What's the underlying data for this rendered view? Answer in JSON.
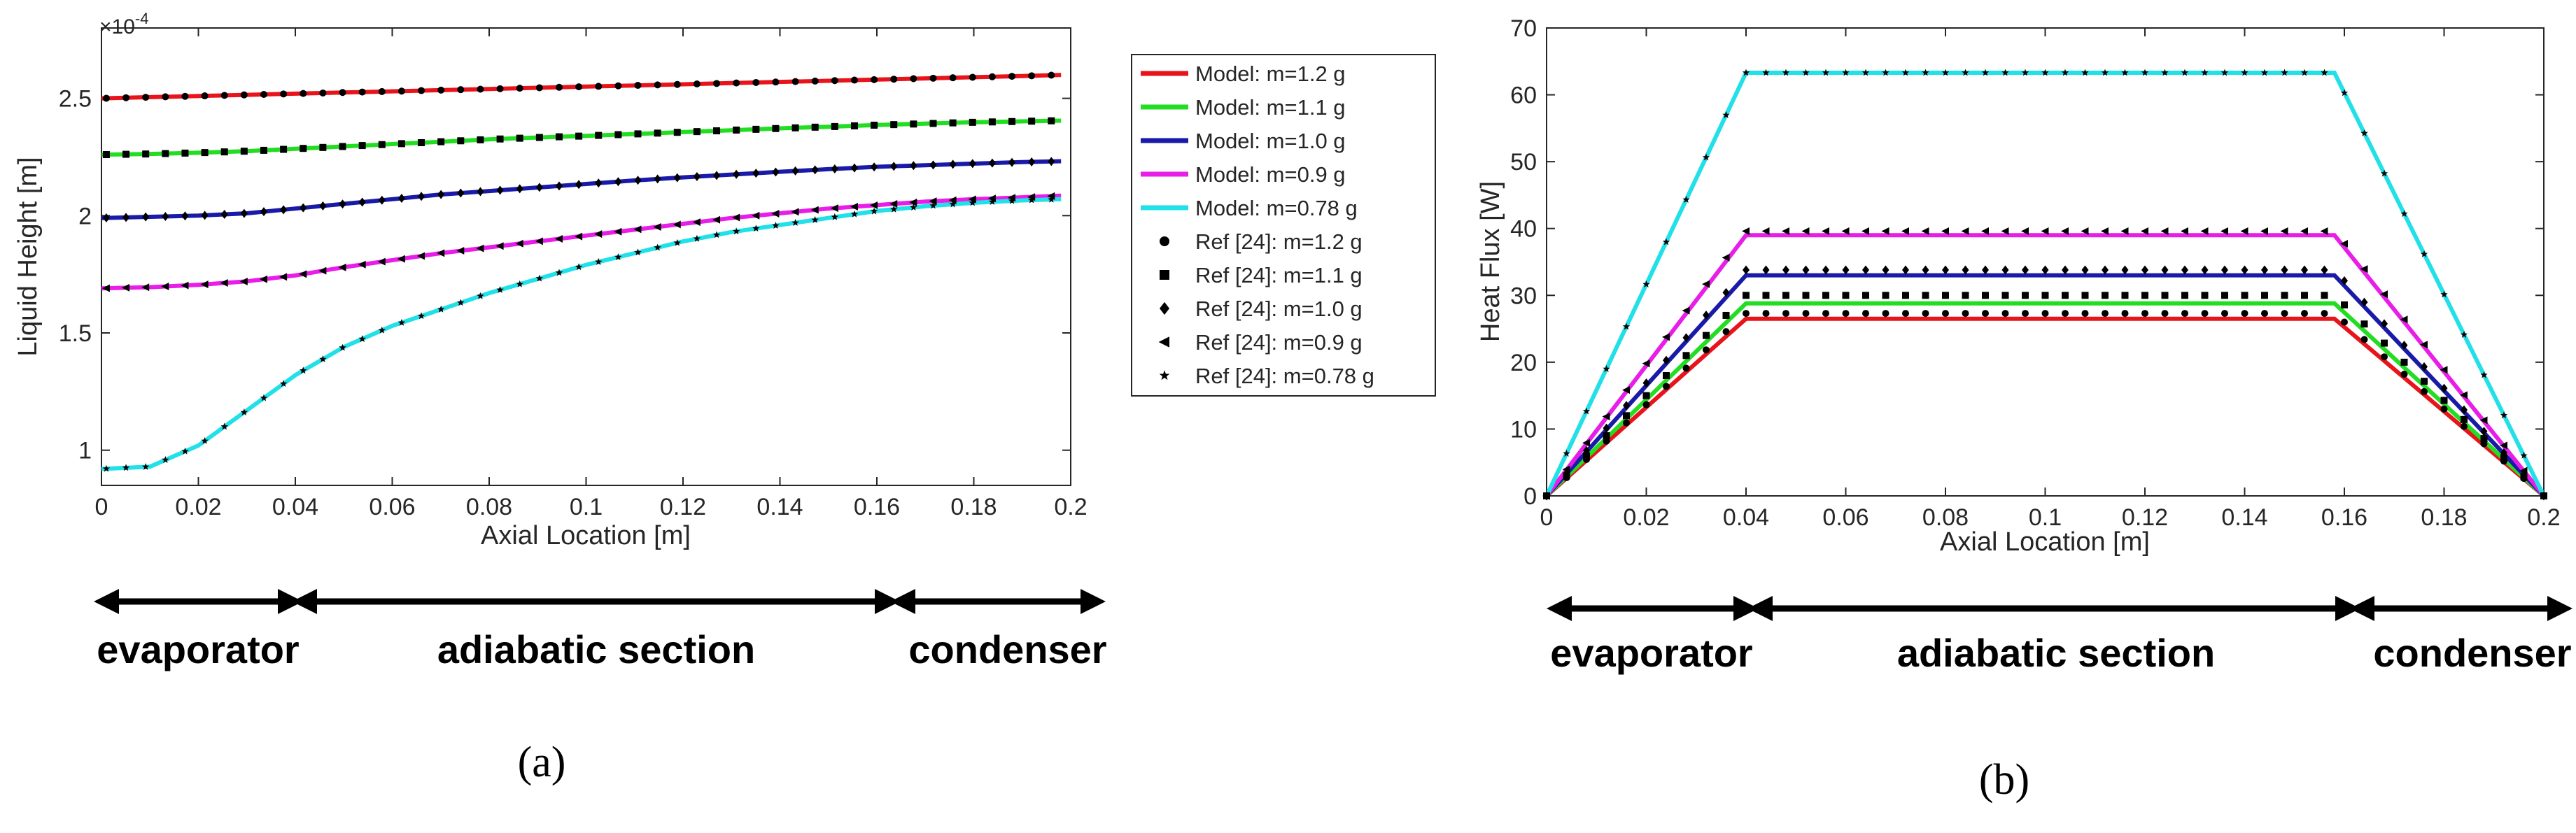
{
  "chart_data": [
    {
      "type": "line",
      "panel_label": "a",
      "xlabel": "Axial Location [m]",
      "ylabel": "Liquid Height [m]",
      "y_multiplier": "×10",
      "y_exponent": "-4",
      "xlim": [
        0,
        0.2
      ],
      "ylim": [
        0.85,
        2.8
      ],
      "xticks": [
        0,
        0.02,
        0.04,
        0.06,
        0.08,
        0.1,
        0.12,
        0.14,
        0.16,
        0.18,
        0.2
      ],
      "xtick_labels": [
        "0",
        "0.02",
        "0.04",
        "0.06",
        "0.08",
        "0.1",
        "0.12",
        "0.14",
        "0.16",
        "0.18",
        "0.2"
      ],
      "yticks": [
        1,
        1.5,
        2,
        2.5
      ],
      "ytick_labels": [
        "1",
        "1.5",
        "2",
        "2.5"
      ],
      "x": [
        0,
        0.01,
        0.02,
        0.03,
        0.04,
        0.05,
        0.06,
        0.07,
        0.08,
        0.09,
        0.1,
        0.11,
        0.12,
        0.13,
        0.14,
        0.15,
        0.16,
        0.17,
        0.18,
        0.19,
        0.198
      ],
      "marker_x_end": 0.196,
      "series": [
        {
          "name": "Model: m=1.2 g",
          "color": "#e8141c",
          "values": [
            2.5,
            2.505,
            2.51,
            2.515,
            2.52,
            2.525,
            2.53,
            2.535,
            2.54,
            2.545,
            2.55,
            2.555,
            2.56,
            2.565,
            2.57,
            2.575,
            2.58,
            2.585,
            2.59,
            2.595,
            2.6
          ]
        },
        {
          "name": "Model: m=1.1 g",
          "color": "#22dd22",
          "values": [
            2.26,
            2.263,
            2.268,
            2.275,
            2.285,
            2.295,
            2.305,
            2.315,
            2.325,
            2.333,
            2.34,
            2.348,
            2.356,
            2.364,
            2.372,
            2.379,
            2.386,
            2.392,
            2.398,
            2.402,
            2.405
          ]
        },
        {
          "name": "Model: m=1.0 g",
          "color": "#1a1aa8",
          "values": [
            1.99,
            1.995,
            2.0,
            2.01,
            2.03,
            2.05,
            2.07,
            2.09,
            2.105,
            2.12,
            2.135,
            2.15,
            2.163,
            2.175,
            2.187,
            2.198,
            2.208,
            2.215,
            2.222,
            2.228,
            2.232
          ]
        },
        {
          "name": "Model: m=0.9 g",
          "color": "#e81ee8",
          "values": [
            1.69,
            1.695,
            1.705,
            1.72,
            1.745,
            1.78,
            1.81,
            1.84,
            1.865,
            1.89,
            1.915,
            1.94,
            1.965,
            1.99,
            2.01,
            2.03,
            2.045,
            2.06,
            2.07,
            2.078,
            2.085
          ]
        },
        {
          "name": "Model: m=0.78 g",
          "color": "#22e0e8",
          "values": [
            0.92,
            0.93,
            1.02,
            1.17,
            1.32,
            1.44,
            1.53,
            1.6,
            1.67,
            1.73,
            1.79,
            1.84,
            1.89,
            1.93,
            1.96,
            1.99,
            2.02,
            2.04,
            2.055,
            2.065,
            2.07
          ]
        }
      ],
      "reference": [
        {
          "name": "Ref [24]: m=1.2 g",
          "marker": "circle",
          "series_index": 0
        },
        {
          "name": "Ref [24]: m=1.1 g",
          "marker": "square",
          "series_index": 1
        },
        {
          "name": "Ref [24]: m=1.0 g",
          "marker": "diamond",
          "series_index": 2
        },
        {
          "name": "Ref [24]: m=0.9 g",
          "marker": "triangle-left",
          "series_index": 3
        },
        {
          "name": "Ref [24]: m=0.78 g",
          "marker": "star",
          "series_index": 4
        }
      ],
      "legend_position": "right"
    },
    {
      "type": "line",
      "panel_label": "b",
      "xlabel": "Axial Location [m]",
      "ylabel": "Heat Flux [W]",
      "xlim": [
        0,
        0.2
      ],
      "ylim": [
        0,
        70
      ],
      "xticks": [
        0,
        0.02,
        0.04,
        0.06,
        0.08,
        0.1,
        0.12,
        0.14,
        0.16,
        0.18,
        0.2
      ],
      "xtick_labels": [
        "0",
        "0.02",
        "0.04",
        "0.06",
        "0.08",
        "0.1",
        "0.12",
        "0.14",
        "0.16",
        "0.18",
        "0.2"
      ],
      "yticks": [
        0,
        10,
        20,
        30,
        40,
        50,
        60,
        70
      ],
      "ytick_labels": [
        "0",
        "10",
        "20",
        "30",
        "40",
        "50",
        "60",
        "70"
      ],
      "plateau_start": 0.04,
      "plateau_end": 0.158,
      "series": [
        {
          "name": "Model: m=1.2 g",
          "color": "#e8141c",
          "plateau": 26.5,
          "ref_plateau": 27.3
        },
        {
          "name": "Model: m=1.1 g",
          "color": "#22dd22",
          "plateau": 28.8,
          "ref_plateau": 30.0
        },
        {
          "name": "Model: m=1.0 g",
          "color": "#1a1aa8",
          "plateau": 33.0,
          "ref_plateau": 33.8
        },
        {
          "name": "Model: m=0.9 g",
          "color": "#e81ee8",
          "plateau": 39.0,
          "ref_plateau": 39.6
        },
        {
          "name": "Model: m=0.78 g",
          "color": "#22e0e8",
          "plateau": 63.3,
          "ref_plateau": 63.3
        }
      ]
    }
  ],
  "sections": {
    "evaporator": "evaporator",
    "adiabatic": "adiabatic section",
    "condenser": "condenser"
  },
  "captions": {
    "a": "(a)",
    "b": "(b)"
  }
}
